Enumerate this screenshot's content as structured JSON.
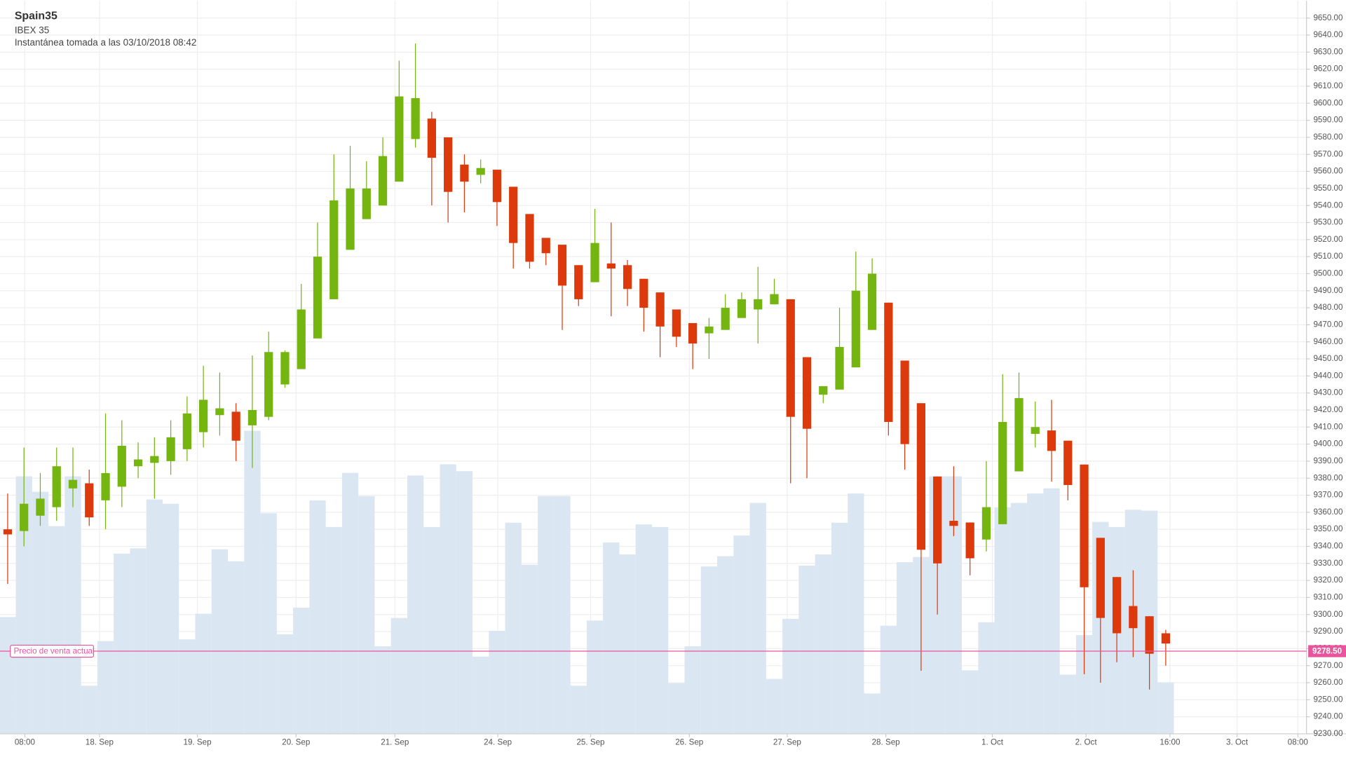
{
  "chart_data": {
    "type": "candlestick",
    "title": "Spain35",
    "subtitle": "IBEX 35",
    "annotation": "Instantánea tomada a las 03/10/2018 08:42",
    "up_color": "#75b510",
    "down_color": "#dc3a0c",
    "volume_color": "#dae6f1",
    "open": [
      9350,
      9349,
      9358,
      9363,
      9374,
      9377,
      9367,
      9375,
      9387,
      9389,
      9390,
      9397,
      9407,
      9417,
      9419,
      9411,
      9416,
      9435,
      9444,
      9462,
      9485,
      9514,
      9532,
      9540,
      9554,
      9579,
      9591,
      9580,
      9564,
      9558,
      9561,
      9551,
      9535,
      9521,
      9517,
      9505,
      9495,
      9506,
      9505,
      9497,
      9489,
      9479,
      9471,
      9465,
      9467,
      9474,
      9479,
      9482,
      9485,
      9451,
      9429,
      9432,
      9445,
      9467,
      9483,
      9449,
      9424,
      9381,
      9355,
      9354,
      9344,
      9353,
      9384,
      9406,
      9408,
      9402,
      9388,
      9345,
      9322,
      9305,
      9299,
      9289
    ],
    "high": [
      9371,
      9398,
      9383,
      9398,
      9398,
      9385,
      9418,
      9414,
      9401,
      9404,
      9414,
      9428,
      9446,
      9442,
      9424,
      9452,
      9466,
      9455,
      9494,
      9530,
      9570,
      9575,
      9566,
      9580,
      9625,
      9635,
      9595,
      9580,
      9570,
      9567,
      9561,
      9551,
      9535,
      9521,
      9517,
      9505,
      9538,
      9530,
      9508,
      9497,
      9489,
      9479,
      9471,
      9474,
      9488,
      9489,
      9504,
      9497,
      9485,
      9451,
      9434,
      9480,
      9513,
      9509,
      9483,
      9449,
      9424,
      9381,
      9387,
      9354,
      9390,
      9441,
      9442,
      9425,
      9426,
      9402,
      9388,
      9345,
      9322,
      9326,
      9299,
      9291
    ],
    "low": [
      9318,
      9340,
      9352,
      9355,
      9363,
      9352,
      9350,
      9363,
      9380,
      9368,
      9382,
      9390,
      9398,
      9405,
      9390,
      9386,
      9414,
      9433,
      9444,
      9462,
      9485,
      9514,
      9532,
      9540,
      9554,
      9574,
      9540,
      9530,
      9536,
      9553,
      9528,
      9503,
      9503,
      9505,
      9467,
      9481,
      9495,
      9475,
      9481,
      9466,
      9451,
      9457,
      9444,
      9450,
      9467,
      9474,
      9459,
      9482,
      9377,
      9380,
      9424,
      9432,
      9445,
      9467,
      9405,
      9385,
      9267,
      9300,
      9346,
      9323,
      9337,
      9353,
      9384,
      9398,
      9378,
      9367,
      9265,
      9260,
      9272,
      9275,
      9256,
      9270
    ],
    "close": [
      9347,
      9365,
      9368,
      9387,
      9379,
      9357,
      9383,
      9399,
      9391,
      9393,
      9404,
      9418,
      9426,
      9421,
      9402,
      9420,
      9454,
      9454,
      9479,
      9510,
      9543,
      9550,
      9550,
      9569,
      9604,
      9603,
      9568,
      9548,
      9554,
      9562,
      9542,
      9518,
      9507,
      9512,
      9493,
      9485,
      9518,
      9503,
      9491,
      9480,
      9469,
      9463,
      9459,
      9469,
      9480,
      9485,
      9485,
      9488,
      9416,
      9409,
      9434,
      9457,
      9490,
      9500,
      9413,
      9400,
      9338,
      9330,
      9352,
      9333,
      9363,
      9413,
      9427,
      9410,
      9396,
      9376,
      9316,
      9298,
      9289,
      9292,
      9277,
      9283
    ],
    "volume": [
      136,
      300,
      282,
      242,
      300,
      56,
      108,
      210,
      216,
      273,
      268,
      110,
      140,
      215,
      201,
      353,
      257,
      116,
      147,
      272,
      241,
      304,
      277,
      102,
      135,
      301,
      241,
      314,
      306,
      90,
      120,
      246,
      197,
      277,
      277,
      56,
      132,
      223,
      209,
      244,
      241,
      59,
      102,
      195,
      207,
      231,
      269,
      64,
      134,
      196,
      209,
      246,
      280,
      47,
      126,
      200,
      206,
      300,
      300,
      74,
      130,
      264,
      269,
      280,
      286,
      69,
      115,
      247,
      241,
      261,
      260,
      60
    ],
    "xlim": [
      -0.47,
      79.63
    ],
    "xticks": [
      {
        "value": 1.05,
        "label": "08:00"
      },
      {
        "value": 5.63,
        "label": "18. Sep"
      },
      {
        "value": 11.63,
        "label": "19. Sep"
      },
      {
        "value": 17.68,
        "label": "20. Sep"
      },
      {
        "value": 23.74,
        "label": "21. Sep"
      },
      {
        "value": 30.05,
        "label": "24. Sep"
      },
      {
        "value": 35.74,
        "label": "25. Sep"
      },
      {
        "value": 41.79,
        "label": "26. Sep"
      },
      {
        "value": 47.79,
        "label": "27. Sep"
      },
      {
        "value": 53.84,
        "label": "28. Sep"
      },
      {
        "value": 60.37,
        "label": "1. Oct"
      },
      {
        "value": 66.11,
        "label": "2. Oct"
      },
      {
        "value": 71.26,
        "label": "16:00"
      },
      {
        "value": 75.37,
        "label": "3. Oct"
      },
      {
        "value": 79.1,
        "label": "08:00"
      }
    ],
    "ylim": [
      9230,
      9650
    ],
    "yticks": [
      {
        "value": 9230,
        "label": "9230.00"
      },
      {
        "value": 9240,
        "label": "9240.00"
      },
      {
        "value": 9250,
        "label": "9250.00"
      },
      {
        "value": 9260,
        "label": "9260.00"
      },
      {
        "value": 9270,
        "label": "9270.00"
      },
      {
        "value": 9280,
        "label": "9280.00"
      },
      {
        "value": 9290,
        "label": "9290.00"
      },
      {
        "value": 9300,
        "label": "9300.00"
      },
      {
        "value": 9310,
        "label": "9310.00"
      },
      {
        "value": 9320,
        "label": "9320.00"
      },
      {
        "value": 9330,
        "label": "9330.00"
      },
      {
        "value": 9340,
        "label": "9340.00"
      },
      {
        "value": 9350,
        "label": "9350.00"
      },
      {
        "value": 9360,
        "label": "9360.00"
      },
      {
        "value": 9370,
        "label": "9370.00"
      },
      {
        "value": 9380,
        "label": "9380.00"
      },
      {
        "value": 9390,
        "label": "9390.00"
      },
      {
        "value": 9400,
        "label": "9400.00"
      },
      {
        "value": 9410,
        "label": "9410.00"
      },
      {
        "value": 9420,
        "label": "9420.00"
      },
      {
        "value": 9430,
        "label": "9430.00"
      },
      {
        "value": 9440,
        "label": "9440.00"
      },
      {
        "value": 9450,
        "label": "9450.00"
      },
      {
        "value": 9460,
        "label": "9460.00"
      },
      {
        "value": 9470,
        "label": "9470.00"
      },
      {
        "value": 9480,
        "label": "9480.00"
      },
      {
        "value": 9490,
        "label": "9490.00"
      },
      {
        "value": 9500,
        "label": "9500.00"
      },
      {
        "value": 9510,
        "label": "9510.00"
      },
      {
        "value": 9520,
        "label": "9520.00"
      },
      {
        "value": 9530,
        "label": "9530.00"
      },
      {
        "value": 9540,
        "label": "9540.00"
      },
      {
        "value": 9550,
        "label": "9550.00"
      },
      {
        "value": 9560,
        "label": "9560.00"
      },
      {
        "value": 9570,
        "label": "9570.00"
      },
      {
        "value": 9580,
        "label": "9580.00"
      },
      {
        "value": 9590,
        "label": "9590.00"
      },
      {
        "value": 9600,
        "label": "9600.00"
      },
      {
        "value": 9610,
        "label": "9610.00"
      },
      {
        "value": 9620,
        "label": "9620.00"
      },
      {
        "value": 9630,
        "label": "9630.00"
      },
      {
        "value": 9640,
        "label": "9640.00"
      },
      {
        "value": 9650,
        "label": "9650.00"
      }
    ],
    "grid": true,
    "current_price": {
      "value": 9278.5,
      "label": "9278.50"
    },
    "current_price_name": "Precio de venta actual",
    "current_price_color": "#e8559c"
  }
}
